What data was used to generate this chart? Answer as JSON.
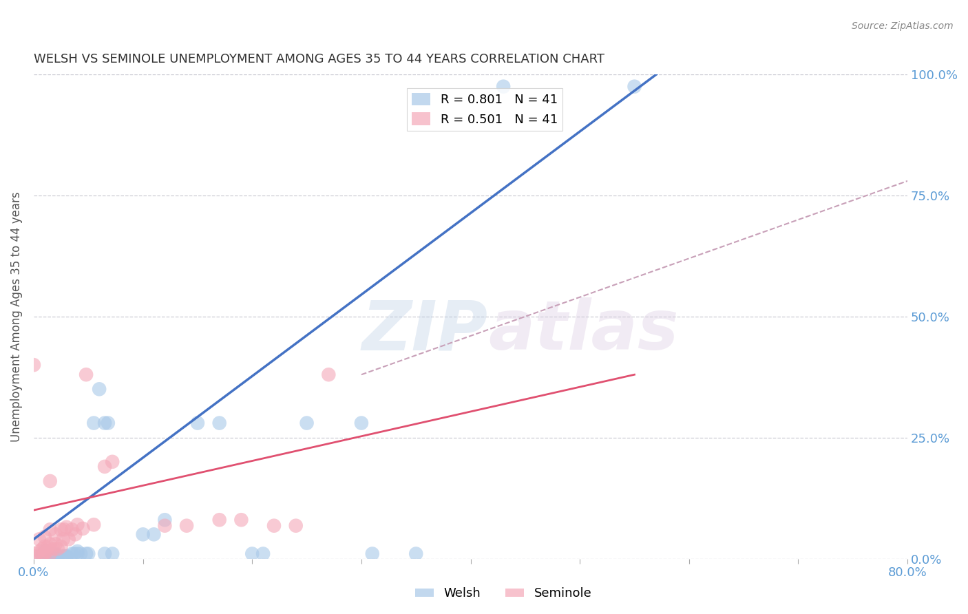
{
  "title": "WELSH VS SEMINOLE UNEMPLOYMENT AMONG AGES 35 TO 44 YEARS CORRELATION CHART",
  "source": "Source: ZipAtlas.com",
  "ylabel": "Unemployment Among Ages 35 to 44 years",
  "xlim": [
    0.0,
    0.8
  ],
  "ylim": [
    0.0,
    1.0
  ],
  "xticks": [
    0.0,
    0.1,
    0.2,
    0.3,
    0.4,
    0.5,
    0.6,
    0.7,
    0.8
  ],
  "xticklabels": [
    "0.0%",
    "",
    "",
    "",
    "",
    "",
    "",
    "",
    "80.0%"
  ],
  "yticks": [
    0.0,
    0.25,
    0.5,
    0.75,
    1.0
  ],
  "yticklabels": [
    "0.0%",
    "25.0%",
    "50.0%",
    "75.0%",
    "100.0%"
  ],
  "welsh_color": "#a8c8e8",
  "seminole_color": "#f4a8b8",
  "welsh_line_color": "#4472c4",
  "seminole_line_color": "#e05070",
  "seminole_dash_color": "#c8a0b8",
  "axis_color": "#5b9bd5",
  "grid_color": "#c8c8d0",
  "legend_welsh_label": "R = 0.801   N = 41",
  "legend_seminole_label": "R = 0.501   N = 41",
  "watermark": "ZIPatlas",
  "welsh_line": [
    0.0,
    0.04,
    0.57,
    1.0
  ],
  "seminole_line": [
    0.0,
    0.1,
    0.55,
    0.38
  ],
  "seminole_dash": [
    0.3,
    0.38,
    0.8,
    0.78
  ],
  "welsh_scatter": [
    [
      0.005,
      0.005
    ],
    [
      0.008,
      0.005
    ],
    [
      0.01,
      0.01
    ],
    [
      0.01,
      0.015
    ],
    [
      0.012,
      0.005
    ],
    [
      0.015,
      0.01
    ],
    [
      0.015,
      0.01
    ],
    [
      0.018,
      0.005
    ],
    [
      0.02,
      0.008
    ],
    [
      0.02,
      0.01
    ],
    [
      0.022,
      0.005
    ],
    [
      0.025,
      0.005
    ],
    [
      0.028,
      0.005
    ],
    [
      0.03,
      0.005
    ],
    [
      0.03,
      0.005
    ],
    [
      0.035,
      0.01
    ],
    [
      0.037,
      0.01
    ],
    [
      0.04,
      0.01
    ],
    [
      0.04,
      0.015
    ],
    [
      0.043,
      0.01
    ],
    [
      0.048,
      0.01
    ],
    [
      0.05,
      0.01
    ],
    [
      0.055,
      0.28
    ],
    [
      0.06,
      0.35
    ],
    [
      0.065,
      0.28
    ],
    [
      0.065,
      0.01
    ],
    [
      0.068,
      0.28
    ],
    [
      0.072,
      0.01
    ],
    [
      0.1,
      0.05
    ],
    [
      0.11,
      0.05
    ],
    [
      0.12,
      0.08
    ],
    [
      0.15,
      0.28
    ],
    [
      0.17,
      0.28
    ],
    [
      0.2,
      0.01
    ],
    [
      0.21,
      0.01
    ],
    [
      0.25,
      0.28
    ],
    [
      0.3,
      0.28
    ],
    [
      0.31,
      0.01
    ],
    [
      0.35,
      0.01
    ],
    [
      0.43,
      0.975
    ],
    [
      0.55,
      0.975
    ]
  ],
  "seminole_scatter": [
    [
      0.0,
      0.005
    ],
    [
      0.003,
      0.01
    ],
    [
      0.005,
      0.015
    ],
    [
      0.005,
      0.04
    ],
    [
      0.008,
      0.008
    ],
    [
      0.008,
      0.02
    ],
    [
      0.01,
      0.01
    ],
    [
      0.01,
      0.025
    ],
    [
      0.01,
      0.045
    ],
    [
      0.012,
      0.015
    ],
    [
      0.013,
      0.025
    ],
    [
      0.015,
      0.01
    ],
    [
      0.015,
      0.03
    ],
    [
      0.015,
      0.06
    ],
    [
      0.015,
      0.16
    ],
    [
      0.018,
      0.02
    ],
    [
      0.02,
      0.03
    ],
    [
      0.02,
      0.05
    ],
    [
      0.022,
      0.02
    ],
    [
      0.025,
      0.025
    ],
    [
      0.025,
      0.06
    ],
    [
      0.027,
      0.04
    ],
    [
      0.028,
      0.06
    ],
    [
      0.03,
      0.065
    ],
    [
      0.032,
      0.04
    ],
    [
      0.035,
      0.06
    ],
    [
      0.038,
      0.05
    ],
    [
      0.04,
      0.07
    ],
    [
      0.0,
      0.4
    ],
    [
      0.045,
      0.062
    ],
    [
      0.048,
      0.38
    ],
    [
      0.055,
      0.07
    ],
    [
      0.065,
      0.19
    ],
    [
      0.072,
      0.2
    ],
    [
      0.12,
      0.068
    ],
    [
      0.14,
      0.068
    ],
    [
      0.17,
      0.08
    ],
    [
      0.19,
      0.08
    ],
    [
      0.22,
      0.068
    ],
    [
      0.24,
      0.068
    ],
    [
      0.27,
      0.38
    ]
  ]
}
